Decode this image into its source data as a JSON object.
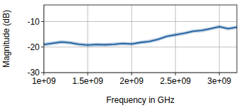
{
  "chart_data": {
    "type": "line",
    "x_label": "Frequency in GHz",
    "y_label": "Magnitude (dB)",
    "x": [
      1000000000,
      1100000000,
      1200000000,
      1300000000,
      1400000000,
      1500000000,
      1600000000,
      1700000000,
      1800000000,
      1900000000,
      2000000000,
      2100000000,
      2200000000,
      2300000000,
      2400000000,
      2500000000,
      2600000000,
      2700000000,
      2800000000,
      2900000000,
      3000000000,
      3100000000,
      3200000000
    ],
    "series": [
      {
        "name": "Magnitude",
        "color": "#1f5f9e",
        "values": [
          -19.0,
          -18.5,
          -18.0,
          -18.3,
          -18.9,
          -19.2,
          -19.0,
          -19.1,
          -18.9,
          -18.6,
          -18.8,
          -18.2,
          -17.8,
          -17.0,
          -15.8,
          -15.2,
          -14.6,
          -13.8,
          -13.5,
          -12.8,
          -12.0,
          -12.8,
          -12.2
        ],
        "lower": [
          -19.7,
          -19.2,
          -18.7,
          -19.0,
          -19.6,
          -19.9,
          -19.7,
          -19.8,
          -19.6,
          -19.3,
          -19.5,
          -18.9,
          -18.5,
          -17.7,
          -16.5,
          -15.9,
          -15.3,
          -14.5,
          -14.2,
          -13.5,
          -12.7,
          -13.5,
          -12.9
        ],
        "upper": [
          -18.3,
          -17.8,
          -17.3,
          -17.6,
          -18.2,
          -18.5,
          -18.3,
          -18.4,
          -18.2,
          -17.9,
          -18.1,
          -17.5,
          -17.1,
          -16.3,
          -15.1,
          -14.5,
          -13.9,
          -13.1,
          -12.8,
          -12.1,
          -11.3,
          -12.1,
          -11.5
        ]
      }
    ],
    "xlim": [
      1000000000,
      3200000000
    ],
    "xticks": [
      {
        "value": 1000000000,
        "label": "1e+09"
      },
      {
        "value": 1500000000,
        "label": "1.5e+09"
      },
      {
        "value": 2000000000,
        "label": "2e+09"
      },
      {
        "value": 2500000000,
        "label": "2.5e+09"
      },
      {
        "value": 3000000000,
        "label": "3e+09"
      }
    ],
    "ylim": [
      -30,
      -3.5
    ],
    "yticks": [
      -30,
      -20,
      -10
    ],
    "grid": true
  }
}
